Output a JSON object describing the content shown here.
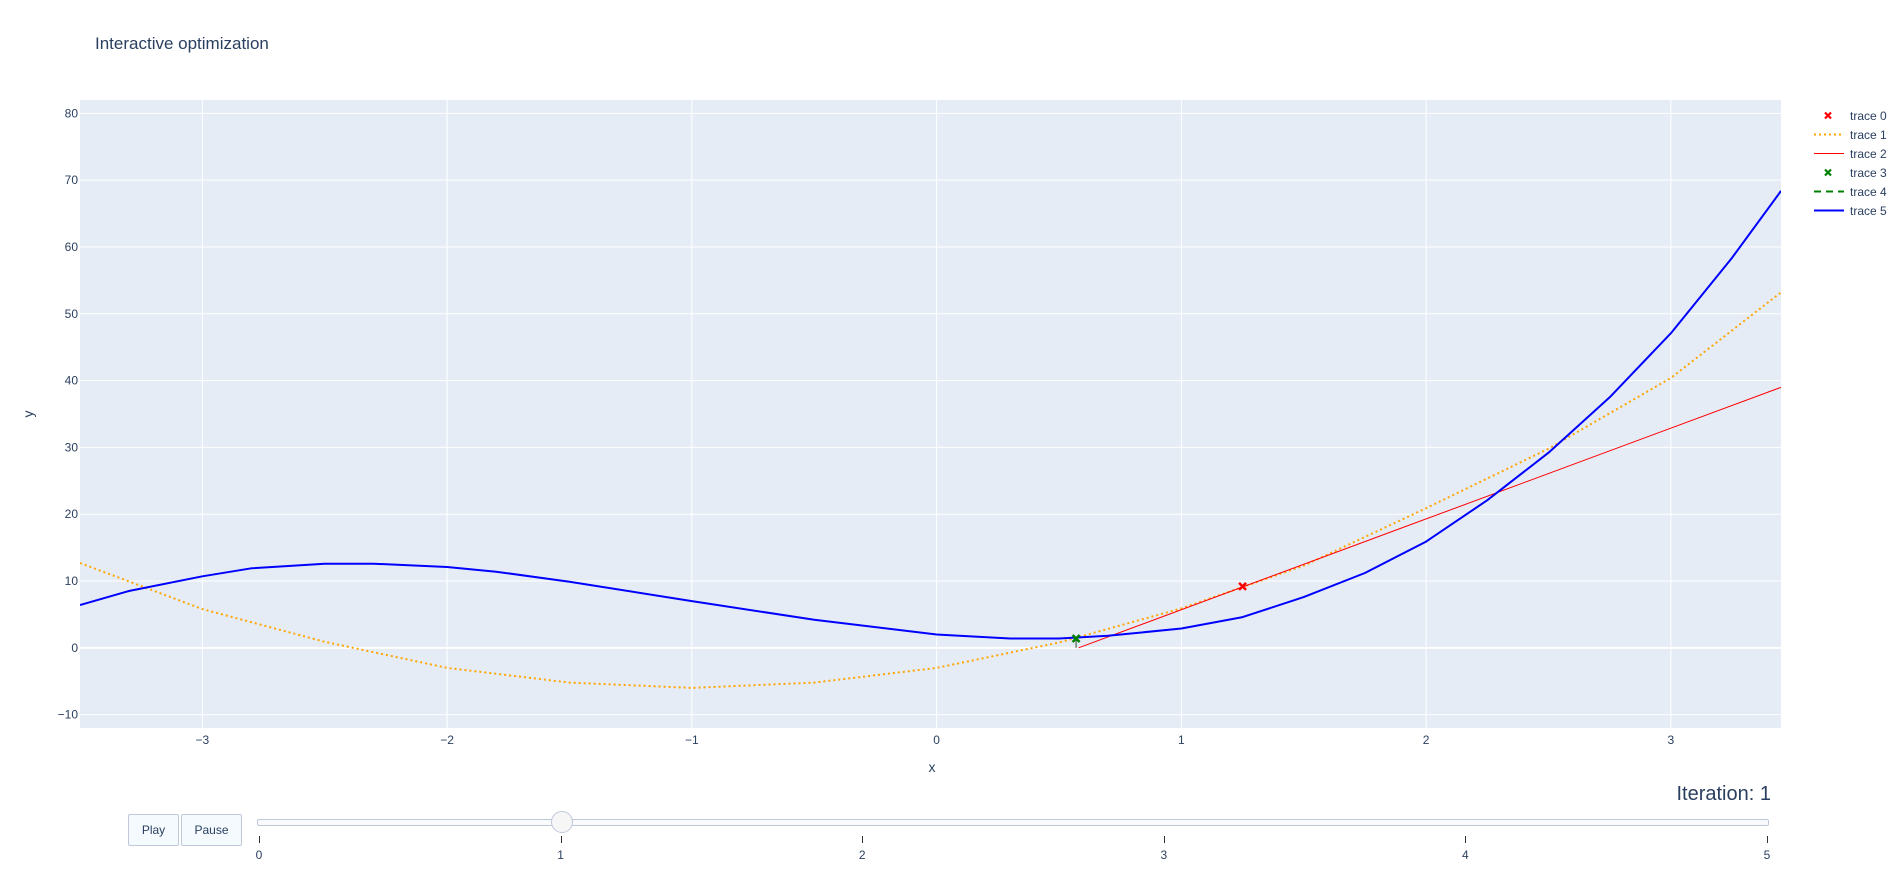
{
  "chart_data": {
    "type": "line",
    "title": "Interactive optimization",
    "xlabel": "x",
    "ylabel": "y",
    "xlim": [
      -3.5,
      3.45
    ],
    "ylim": [
      -12,
      82
    ],
    "xticks": [
      -3,
      -2,
      -1,
      0,
      1,
      2,
      3
    ],
    "xtick_labels": [
      "−3",
      "−2",
      "−1",
      "0",
      "1",
      "2",
      "3"
    ],
    "yticks": [
      -10,
      0,
      10,
      20,
      30,
      40,
      50,
      60,
      70,
      80
    ],
    "ytick_labels": [
      "−10",
      "0",
      "10",
      "20",
      "30",
      "40",
      "50",
      "60",
      "70",
      "80"
    ],
    "grid": true,
    "legend_position": "top-right outside",
    "series": [
      {
        "name": "trace 0",
        "mode": "markers",
        "marker": "x",
        "color": "#ff0000",
        "x": [
          1.25
        ],
        "y": [
          9.2
        ]
      },
      {
        "name": "trace 1",
        "mode": "lines",
        "dash": "dot",
        "color": "#ffa500",
        "x": [
          -3.5,
          -3.0,
          -2.5,
          -2.0,
          -1.5,
          -1.0,
          -0.5,
          0.0,
          0.5,
          1.0,
          1.5,
          2.0,
          2.5,
          3.0,
          3.45
        ],
        "y": [
          12.7,
          5.8,
          0.9,
          -3.0,
          -5.2,
          -6.0,
          -5.2,
          -3.0,
          0.8,
          5.9,
          12.3,
          20.9,
          29.8,
          40.4,
          53.2
        ]
      },
      {
        "name": "trace 2",
        "mode": "lines",
        "color": "#ff0000",
        "x": [
          0.58,
          3.45
        ],
        "y": [
          0.0,
          39.0
        ]
      },
      {
        "name": "trace 3",
        "mode": "markers",
        "marker": "x",
        "color": "#008000",
        "x": [
          0.57
        ],
        "y": [
          1.4
        ]
      },
      {
        "name": "trace 4",
        "mode": "lines",
        "dash": "dash",
        "color": "#008000",
        "x": [
          0.57,
          0.57
        ],
        "y": [
          0.0,
          1.4
        ]
      },
      {
        "name": "trace 5",
        "mode": "lines",
        "color": "#0000ff",
        "x": [
          -3.5,
          -3.3,
          -3.0,
          -2.8,
          -2.5,
          -2.3,
          -2.0,
          -1.8,
          -1.5,
          -1.0,
          -0.5,
          0.0,
          0.3,
          0.5,
          0.7,
          1.0,
          1.25,
          1.5,
          1.75,
          2.0,
          2.25,
          2.5,
          2.75,
          3.0,
          3.25,
          3.45
        ],
        "y": [
          6.4,
          8.5,
          10.7,
          11.9,
          12.6,
          12.6,
          12.1,
          11.4,
          9.9,
          7.0,
          4.2,
          2.0,
          1.4,
          1.4,
          1.8,
          2.9,
          4.6,
          7.6,
          11.2,
          15.9,
          22.1,
          29.2,
          37.5,
          47.1,
          58.4,
          68.4
        ]
      }
    ]
  },
  "controls": {
    "play_label": "Play",
    "pause_label": "Pause",
    "slider_prefix": "Iteration: ",
    "slider_value": "1",
    "slider_current_label": "Iteration: 1",
    "slider_steps": [
      "0",
      "1",
      "2",
      "3",
      "4",
      "5"
    ],
    "slider_active_index": 1
  }
}
